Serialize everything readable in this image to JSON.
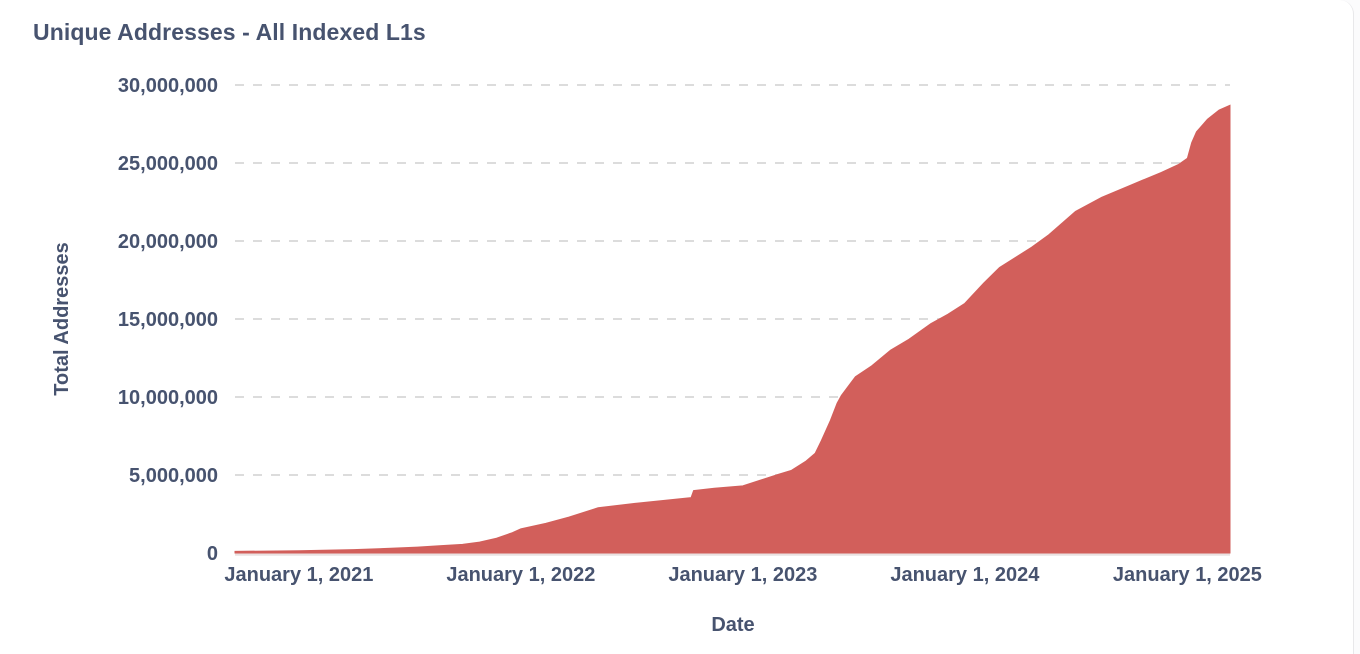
{
  "header": {
    "title": "Unique Addresses - All Indexed L1s"
  },
  "colors": {
    "area_fill": "#d25f5b",
    "text": "#47536f",
    "grid": "#dcdcdc",
    "axis_line": "#eae2e2",
    "card_border": "#e8e8ea"
  },
  "chart_data": {
    "type": "area",
    "title": "Unique Addresses - All Indexed L1s",
    "xlabel": "Date",
    "ylabel": "Total Addresses",
    "legend": "none",
    "grid": "horizontal-dashed",
    "ylim": [
      0,
      30000000
    ],
    "x_domain": [
      "2020-09-18",
      "2025-03-12"
    ],
    "y_ticks": [
      0,
      5000000,
      10000000,
      15000000,
      20000000,
      25000000,
      30000000
    ],
    "y_tick_labels": [
      "0",
      "5,000,000",
      "10,000,000",
      "15,000,000",
      "20,000,000",
      "25,000,000",
      "30,000,000"
    ],
    "x_tick_dates": [
      "2021-01-01",
      "2022-01-01",
      "2023-01-01",
      "2024-01-01",
      "2025-01-01"
    ],
    "x_tick_labels": [
      "January 1, 2021",
      "January 1, 2022",
      "January 1, 2023",
      "January 1, 2024",
      "January 1, 2025"
    ],
    "series": [
      {
        "name": "Unique Addresses - All Indexed L1s",
        "points": [
          {
            "date": "2020-09-18",
            "value": 100000
          },
          {
            "date": "2021-01-01",
            "value": 150000
          },
          {
            "date": "2021-04-01",
            "value": 220000
          },
          {
            "date": "2021-06-01",
            "value": 300000
          },
          {
            "date": "2021-07-15",
            "value": 380000
          },
          {
            "date": "2021-08-20",
            "value": 470000
          },
          {
            "date": "2021-09-27",
            "value": 550000
          },
          {
            "date": "2021-10-25",
            "value": 700000
          },
          {
            "date": "2021-11-22",
            "value": 950000
          },
          {
            "date": "2021-12-18",
            "value": 1300000
          },
          {
            "date": "2022-01-01",
            "value": 1550000
          },
          {
            "date": "2022-02-11",
            "value": 1900000
          },
          {
            "date": "2022-03-21",
            "value": 2300000
          },
          {
            "date": "2022-05-08",
            "value": 2900000
          },
          {
            "date": "2022-07-12",
            "value": 3200000
          },
          {
            "date": "2022-10-08",
            "value": 3550000
          },
          {
            "date": "2022-10-12",
            "value": 4000000
          },
          {
            "date": "2022-11-15",
            "value": 4150000
          },
          {
            "date": "2023-01-01",
            "value": 4300000
          },
          {
            "date": "2023-02-01",
            "value": 4700000
          },
          {
            "date": "2023-03-01",
            "value": 5050000
          },
          {
            "date": "2023-03-22",
            "value": 5300000
          },
          {
            "date": "2023-04-15",
            "value": 5900000
          },
          {
            "date": "2023-04-30",
            "value": 6400000
          },
          {
            "date": "2023-05-10",
            "value": 7200000
          },
          {
            "date": "2023-05-25",
            "value": 8500000
          },
          {
            "date": "2023-06-05",
            "value": 9600000
          },
          {
            "date": "2023-06-12",
            "value": 10100000
          },
          {
            "date": "2023-07-05",
            "value": 11300000
          },
          {
            "date": "2023-08-01",
            "value": 12000000
          },
          {
            "date": "2023-09-01",
            "value": 13000000
          },
          {
            "date": "2023-10-01",
            "value": 13700000
          },
          {
            "date": "2023-11-06",
            "value": 14700000
          },
          {
            "date": "2023-12-04",
            "value": 15300000
          },
          {
            "date": "2024-01-01",
            "value": 16000000
          },
          {
            "date": "2024-02-01",
            "value": 17300000
          },
          {
            "date": "2024-02-27",
            "value": 18300000
          },
          {
            "date": "2024-04-20",
            "value": 19600000
          },
          {
            "date": "2024-05-18",
            "value": 20400000
          },
          {
            "date": "2024-07-01",
            "value": 21900000
          },
          {
            "date": "2024-08-13",
            "value": 22800000
          },
          {
            "date": "2024-10-01",
            "value": 23600000
          },
          {
            "date": "2024-11-19",
            "value": 24400000
          },
          {
            "date": "2024-12-17",
            "value": 24900000
          },
          {
            "date": "2025-01-01",
            "value": 25300000
          },
          {
            "date": "2025-01-08",
            "value": 26300000
          },
          {
            "date": "2025-01-16",
            "value": 27000000
          },
          {
            "date": "2025-02-03",
            "value": 27800000
          },
          {
            "date": "2025-02-22",
            "value": 28400000
          },
          {
            "date": "2025-03-12",
            "value": 28700000
          }
        ]
      }
    ]
  }
}
